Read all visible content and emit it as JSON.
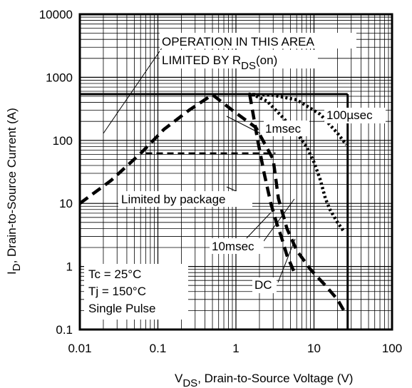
{
  "chart_data": {
    "type": "line",
    "scale": "log-log",
    "xlim": [
      0.01,
      100
    ],
    "ylim": [
      0.1,
      10000
    ],
    "grid": true,
    "x_ticks": [
      "0.01",
      "0.1",
      "1",
      "10",
      "100"
    ],
    "y_ticks": [
      "0.1",
      "1",
      "10",
      "100",
      "1000",
      "10000"
    ],
    "xlabel": {
      "main": "V",
      "sub": "DS",
      "rest": ", Drain-to-Source Voltage (V)"
    },
    "ylabel": {
      "main": "I",
      "sub": "D",
      "rest": ",  Drain-to-Source Current (A)"
    },
    "boundary": {
      "current_limit_A": 540,
      "voltage_limit_V": 27
    },
    "series": [
      {
        "name": "100µsec",
        "style": "dotted",
        "x": [
          1.45,
          3.0,
          6.0,
          12.0,
          20.0,
          26.0
        ],
        "y": [
          540,
          520,
          440,
          260,
          130,
          85
        ]
      },
      {
        "name": "1msec",
        "style": "dotted",
        "x": [
          1.6,
          2.5,
          4.0,
          6.0,
          8.0,
          10.0,
          12.0,
          14.0,
          16.0,
          20.0,
          24.5
        ],
        "y": [
          540,
          420,
          230,
          130,
          80,
          45,
          24,
          12,
          8,
          5,
          3.5
        ]
      },
      {
        "name": "10msec",
        "style": "dashed",
        "x": [
          0.01,
          0.025,
          0.06,
          0.12,
          0.25,
          0.5,
          0.9,
          1.8,
          3.0,
          3.5,
          4.5,
          6.0,
          9.0,
          14.0,
          20.0,
          26.0
        ],
        "y": [
          10,
          23,
          62,
          150,
          300,
          530,
          300,
          160,
          50,
          12,
          4,
          1.8,
          0.9,
          0.5,
          0.3,
          0.17
        ]
      },
      {
        "name": "DC",
        "style": "dashed",
        "x": [
          1.5,
          1.9,
          2.3,
          2.8,
          3.3,
          3.8,
          4.5,
          5.5
        ],
        "y": [
          540,
          100,
          30,
          10,
          5,
          3,
          1.5,
          0.85
        ]
      },
      {
        "name": "Limited by package",
        "style": "dashed",
        "x": [
          0.07,
          2.0,
          3.2
        ],
        "y": [
          62,
          62,
          62
        ]
      }
    ],
    "annotations": [
      {
        "text": "OPERATION IN THIS AREA"
      },
      {
        "main": "LIMITED BY R",
        "sub": "DS",
        "rest": "(on)"
      },
      {
        "text": "1msec"
      },
      {
        "text": "100µsec"
      },
      {
        "text": "Limited by package"
      },
      {
        "text": "10msec"
      },
      {
        "text": "DC"
      },
      {
        "text": "Tc = 25°C"
      },
      {
        "text": "Tj = 150°C"
      },
      {
        "text": "Single Pulse"
      }
    ]
  }
}
